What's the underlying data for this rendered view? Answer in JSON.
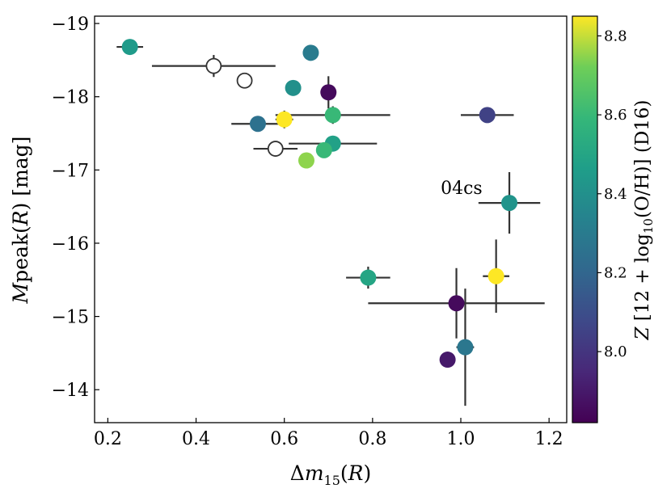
{
  "chart_data": {
    "type": "scatter",
    "xlabel": "Δm15(R)",
    "ylabel": "Mpeak(R) [mag]",
    "xlim": [
      0.17,
      1.24
    ],
    "ylim": [
      -13.55,
      -19.1
    ],
    "x_ticks": [
      0.2,
      0.4,
      0.6,
      0.8,
      1.0,
      1.2
    ],
    "x_tick_labels": [
      "0.2",
      "0.4",
      "0.6",
      "0.8",
      "1.0",
      "1.2"
    ],
    "y_ticks": [
      -19,
      -18,
      -17,
      -16,
      -15,
      -14
    ],
    "y_tick_labels": [
      "−19",
      "−18",
      "−17",
      "−16",
      "−15",
      "−14"
    ],
    "colorbar": {
      "label": "Z [12 + log10(O/H)] (D16)",
      "range": [
        7.82,
        8.85
      ],
      "ticks": [
        8.0,
        8.2,
        8.4,
        8.6,
        8.8
      ],
      "tick_labels": [
        "8.0",
        "8.2",
        "8.4",
        "8.6",
        "8.8"
      ],
      "colormap": "viridis"
    },
    "annotations": [
      {
        "text": "04cs",
        "x": 0.98,
        "y": -16.75
      }
    ],
    "points": [
      {
        "x": 0.25,
        "y": -18.68,
        "xerr": 0.03,
        "yerr": 0.1,
        "z": 8.45
      },
      {
        "x": 0.44,
        "y": -18.42,
        "xerr": 0.14,
        "yerr": 0.15,
        "z": null
      },
      {
        "x": 0.51,
        "y": -18.22,
        "xerr": 0.0,
        "yerr": 0.1,
        "z": null
      },
      {
        "x": 0.66,
        "y": -18.6,
        "xerr": 0.01,
        "yerr": 0.0,
        "z": 8.3
      },
      {
        "x": 0.62,
        "y": -18.12,
        "xerr": 0.0,
        "yerr": 0.0,
        "z": 8.4
      },
      {
        "x": 0.7,
        "y": -18.06,
        "xerr": 0.0,
        "yerr": 0.22,
        "z": 7.85
      },
      {
        "x": 1.06,
        "y": -17.75,
        "xerr": 0.06,
        "yerr": 0.0,
        "z": 8.05
      },
      {
        "x": 0.71,
        "y": -17.75,
        "xerr": 0.13,
        "yerr": 0.12,
        "z": 8.6
      },
      {
        "x": 0.6,
        "y": -17.69,
        "xerr": 0.02,
        "yerr": 0.12,
        "z": 8.85
      },
      {
        "x": 0.54,
        "y": -17.63,
        "xerr": 0.06,
        "yerr": 0.1,
        "z": 8.25
      },
      {
        "x": 0.71,
        "y": -17.36,
        "xerr": 0.1,
        "yerr": 0.07,
        "z": 8.48
      },
      {
        "x": 0.69,
        "y": -17.27,
        "xerr": 0.0,
        "yerr": 0.0,
        "z": 8.6
      },
      {
        "x": 0.58,
        "y": -17.29,
        "xerr": 0.05,
        "yerr": 0.1,
        "z": null
      },
      {
        "x": 0.65,
        "y": -17.13,
        "xerr": 0.0,
        "yerr": 0.07,
        "z": 8.75
      },
      {
        "x": 1.11,
        "y": -16.55,
        "xerr": 0.07,
        "yerr": 0.42,
        "z": 8.42
      },
      {
        "x": 0.79,
        "y": -15.53,
        "xerr": 0.05,
        "yerr": 0.15,
        "z": 8.5
      },
      {
        "x": 1.08,
        "y": -15.55,
        "xerr": 0.03,
        "yerr": 0.5,
        "z": 8.85
      },
      {
        "x": 0.99,
        "y": -15.18,
        "xerr": 0.2,
        "yerr": 0.48,
        "z": 7.85
      },
      {
        "x": 1.01,
        "y": -14.58,
        "xerr": 0.02,
        "yerr": 0.8,
        "z": 8.28
      },
      {
        "x": 0.97,
        "y": -14.41,
        "xerr": 0.0,
        "yerr": 0.1,
        "z": 7.9
      }
    ]
  }
}
